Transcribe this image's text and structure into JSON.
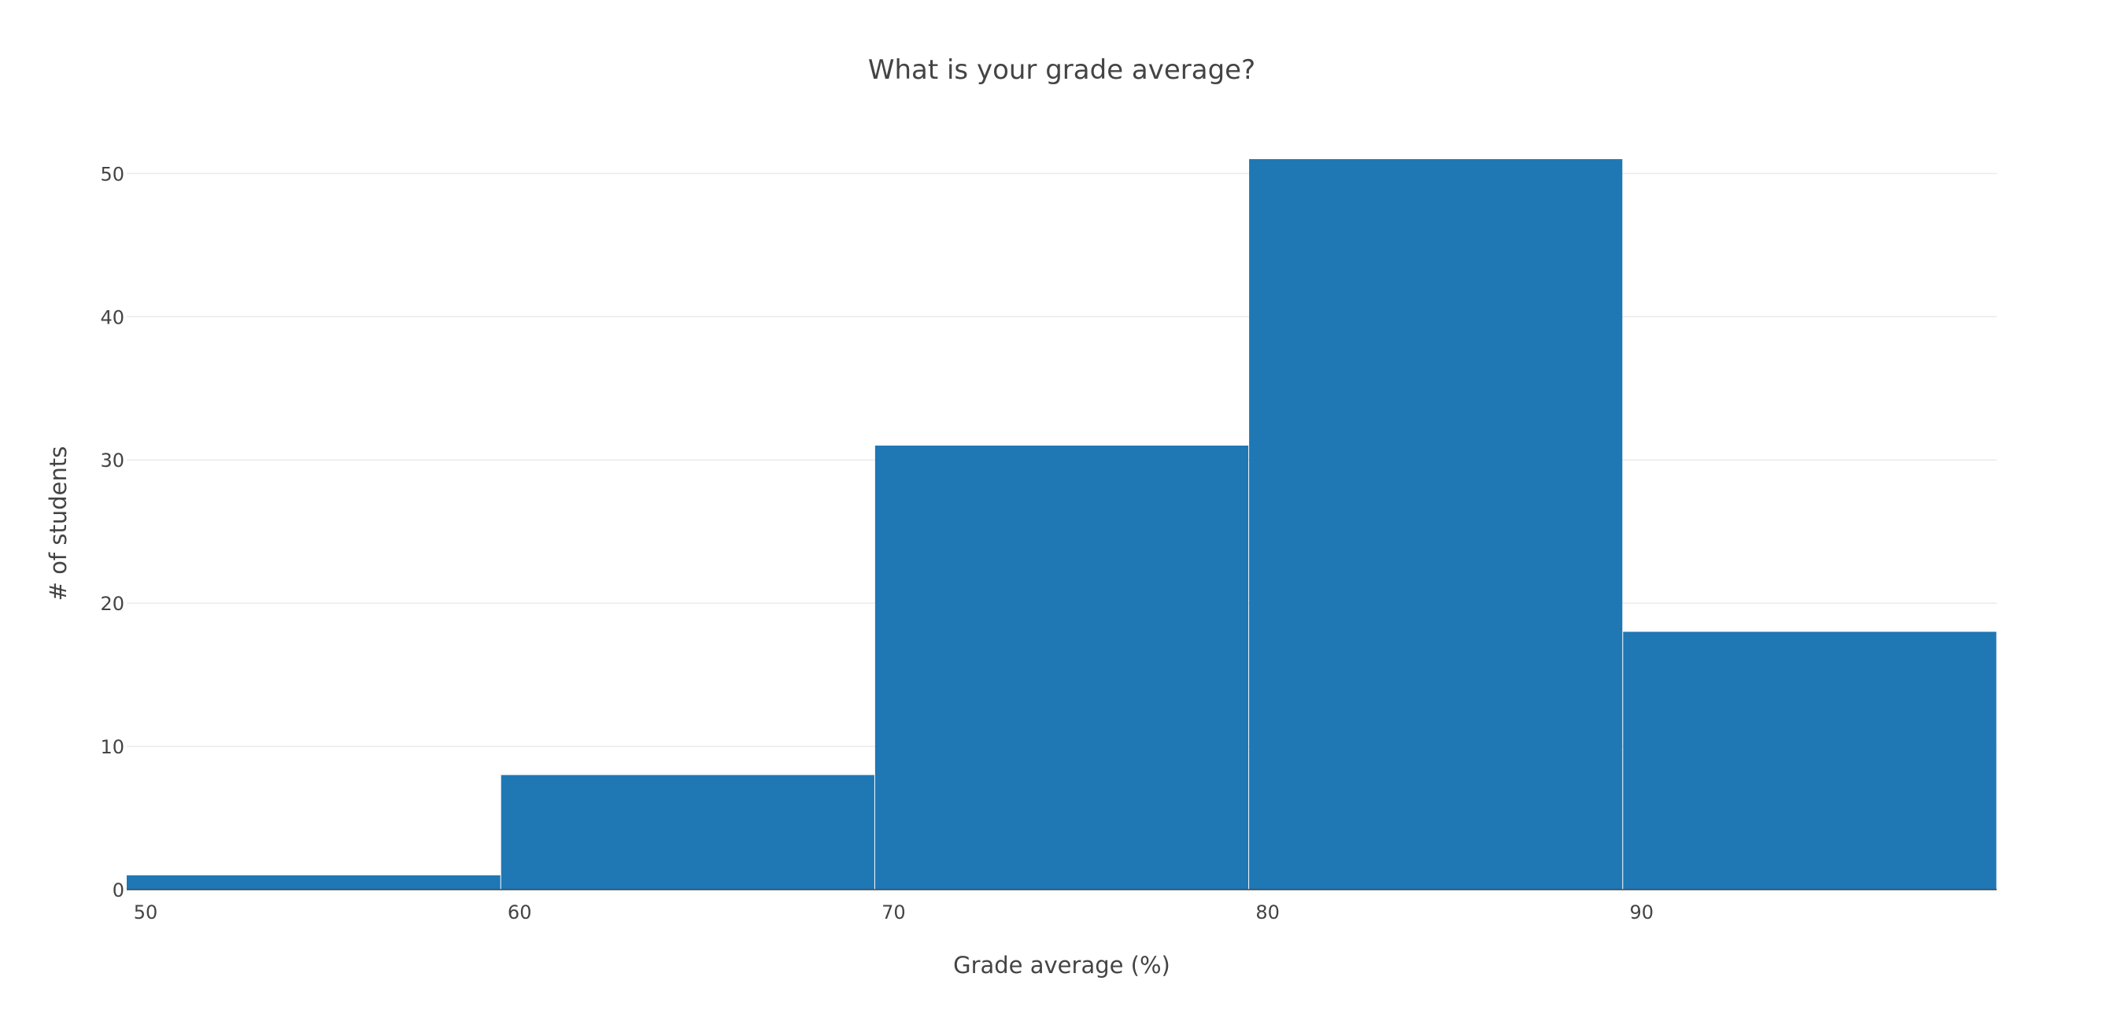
{
  "chart_data": {
    "type": "bar",
    "title": "What is your grade average?",
    "xlabel": "Grade average (%)",
    "ylabel": "# of students",
    "bins": [
      {
        "start": 50,
        "end": 60,
        "count": 1
      },
      {
        "start": 60,
        "end": 70,
        "count": 8
      },
      {
        "start": 70,
        "end": 80,
        "count": 31
      },
      {
        "start": 80,
        "end": 90,
        "count": 51
      },
      {
        "start": 90,
        "end": 100,
        "count": 18
      }
    ],
    "xlim": [
      50,
      100
    ],
    "ylim": [
      0,
      53.7
    ],
    "x_ticks": [
      "50",
      "60",
      "70",
      "80",
      "90"
    ],
    "y_ticks": [
      "0",
      "10",
      "20",
      "30",
      "40",
      "50"
    ],
    "grid": "horizontal",
    "legend": "none",
    "bar_color": "#1f77b4"
  }
}
